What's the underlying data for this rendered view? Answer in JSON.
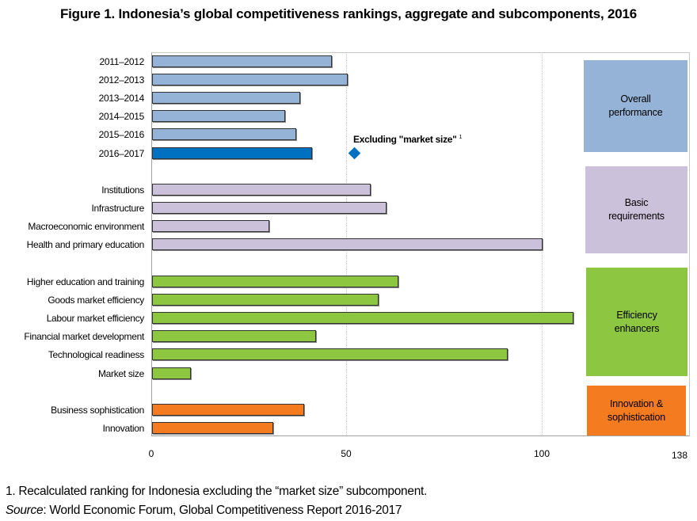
{
  "title": "Figure 1. Indonesia’s global competitiveness rankings, aggregate and subcomponents, 2016",
  "footnote": "1. Recalculated ranking for Indonesia excluding the “market size” subcomponent.",
  "source_label": "Source",
  "source_text": ": World Economic Forum, Global Competitiveness Report 2016-2017",
  "colors": {
    "overall": "#95b3d7",
    "overall_highlight": "#0070c0",
    "basic": "#ccc1da",
    "efficiency": "#8dc641",
    "innovation": "#f47b20"
  },
  "chart_data": {
    "type": "bar",
    "orientation": "horizontal",
    "title": "Figure 1. Indonesia’s global competitiveness rankings, aggregate and subcomponents, 2016",
    "xlabel": "",
    "ylabel": "",
    "xlim": [
      0,
      138
    ],
    "xticks": [
      "0",
      "50",
      "100",
      "138"
    ],
    "grid": "vertical dotted at 50 and 100",
    "categories": [
      "2011–2012",
      "2012–2013",
      "2013–2014",
      "2014–2015",
      "2015–2016",
      "2016–2017",
      "Institutions",
      "Infrastructure",
      "Macroeconomic environment",
      "Health and primary education",
      "Higher education and training",
      "Goods market efficiency",
      "Labour market efficiency",
      "Financial market development",
      "Technological readiness",
      "Market size",
      "Business sophistication",
      "Innovation"
    ],
    "groups": [
      {
        "name": "Overall performance",
        "color": "#95b3d7",
        "items": [
          {
            "label": "2011–2012",
            "value": 46
          },
          {
            "label": "2012–2013",
            "value": 50
          },
          {
            "label": "2013–2014",
            "value": 38
          },
          {
            "label": "2014–2015",
            "value": 34
          },
          {
            "label": "2015–2016",
            "value": 37
          },
          {
            "label": "2016–2017",
            "value": 41,
            "highlight": true
          }
        ]
      },
      {
        "name": "Basic requirements",
        "color": "#ccc1da",
        "items": [
          {
            "label": "Institutions",
            "value": 56
          },
          {
            "label": "Infrastructure",
            "value": 60
          },
          {
            "label": "Macroeconomic environment",
            "value": 30
          },
          {
            "label": "Health and primary education",
            "value": 100
          }
        ]
      },
      {
        "name": "Efficiency enhancers",
        "color": "#8dc641",
        "items": [
          {
            "label": "Higher education and training",
            "value": 63
          },
          {
            "label": "Goods market efficiency",
            "value": 58
          },
          {
            "label": "Labour market efficiency",
            "value": 108
          },
          {
            "label": "Financial market development",
            "value": 42
          },
          {
            "label": "Technological readiness",
            "value": 91
          },
          {
            "label": "Market size",
            "value": 10
          }
        ]
      },
      {
        "name": "Innovation & sophistication",
        "color": "#f47b20",
        "items": [
          {
            "label": "Business sophistication",
            "value": 39
          },
          {
            "label": "Innovation",
            "value": 31
          }
        ]
      }
    ],
    "annotations": [
      {
        "type": "diamond-marker",
        "row": "2016–2017",
        "value": 52,
        "label": "Excluding \"market size\"",
        "superscript": "1"
      }
    ],
    "legend_boxes": [
      {
        "line1": "Overall",
        "line2": "performance"
      },
      {
        "line1": "Basic",
        "line2": "requirements"
      },
      {
        "line1": "Efficiency",
        "line2": "enhancers"
      },
      {
        "line1": "Innovation &",
        "line2": "sophistication"
      }
    ]
  }
}
